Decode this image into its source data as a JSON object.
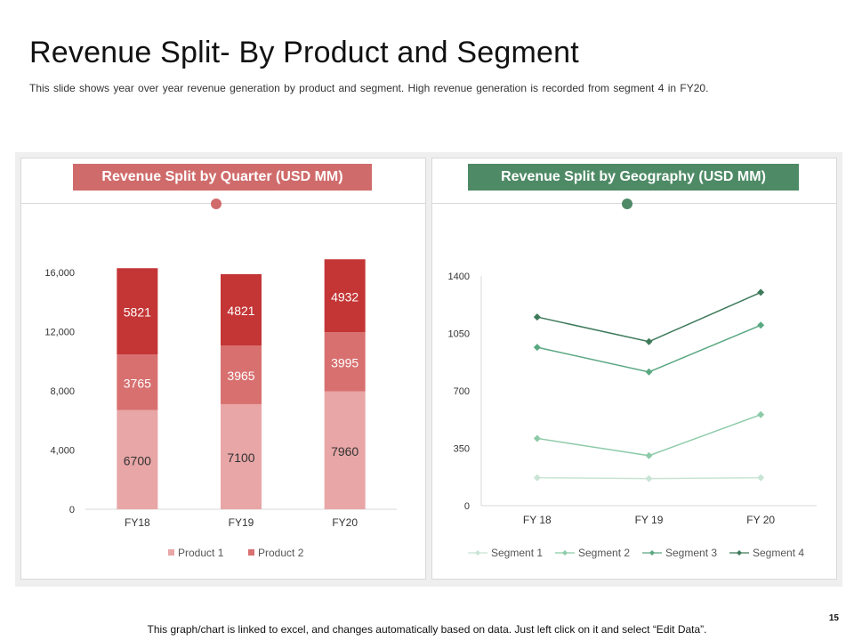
{
  "slide": {
    "title": "Revenue Split- By Product and Segment",
    "subtitle": "This slide shows year over year revenue generation by product and segment. High revenue generation is recorded from segment 4 in FY20.",
    "footer": "This graph/chart is linked to excel, and changes automatically based on data. Just left click on it and select “Edit Data”.",
    "page_number": "15"
  },
  "colors": {
    "red_accent": "#d06b6b",
    "green_accent": "#4e8a66",
    "product1": "#e8a6a6",
    "product2_mid": "#d87070",
    "product2_top": "#c43535",
    "segment1": "#c8e4d4",
    "segment2": "#8ccaa8",
    "segment3": "#5aa882",
    "segment4": "#3e7a5a"
  },
  "chart_data": [
    {
      "type": "bar",
      "stacked": true,
      "title": "Revenue Split by Quarter (USD MM)",
      "categories": [
        "FY18",
        "FY19",
        "FY20"
      ],
      "series": [
        {
          "name": "Product 1",
          "values": [
            6700,
            7100,
            7960
          ]
        },
        {
          "name": "",
          "values": [
            3765,
            3965,
            3995
          ]
        },
        {
          "name": "Product 2",
          "values": [
            5821,
            4821,
            4932
          ]
        }
      ],
      "ylim": [
        0,
        16000
      ],
      "yticks": [
        "0",
        "4,000",
        "8,000",
        "12,000",
        "16,000"
      ],
      "legend": [
        "Product 1",
        "Product 2"
      ],
      "legend_position": "bottom"
    },
    {
      "type": "line",
      "title": "Revenue Split by Geography (USD MM)",
      "categories": [
        "FY 18",
        "FY 19",
        "FY 20"
      ],
      "series": [
        {
          "name": "Segment 1",
          "values": [
            170,
            165,
            170
          ]
        },
        {
          "name": "Segment 2",
          "values": [
            410,
            305,
            555
          ]
        },
        {
          "name": "Segment 3",
          "values": [
            965,
            815,
            1100
          ]
        },
        {
          "name": "Segment 4",
          "values": [
            1150,
            1000,
            1300
          ]
        }
      ],
      "ylim": [
        0,
        1400
      ],
      "yticks": [
        "0",
        "350",
        "700",
        "1050",
        "1400"
      ],
      "legend_position": "bottom"
    }
  ]
}
